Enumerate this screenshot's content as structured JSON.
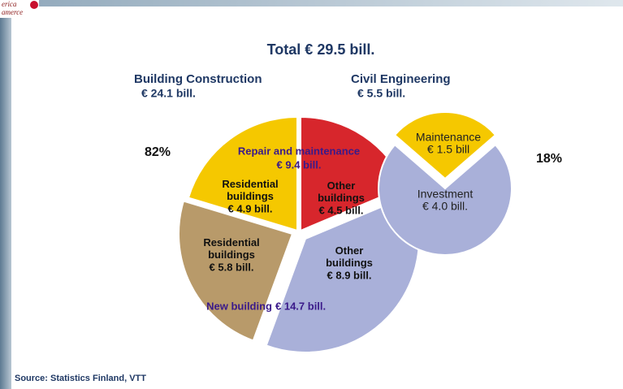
{
  "title": "Total € 29.5 bill.",
  "source": "Source: Statistics Finland, VTT",
  "logo": [
    "erica",
    "amerce"
  ],
  "chart_data": [
    {
      "type": "pie",
      "name": "Building Construction",
      "subtitle": "€ 24.1 bill.",
      "share_label": "82%",
      "categories": [
        "Other buildings",
        "Other buildings",
        "Residential buildings",
        "Residential buildings"
      ],
      "values": [
        4.5,
        8.9,
        5.8,
        4.9
      ],
      "value_labels": [
        "€ 4.5 bill.",
        "€ 8.9 bill.",
        "€ 5.8 bill.",
        "€ 4.9 bill."
      ],
      "colors": [
        "#d7262c",
        "#a9b0d9",
        "#b89a6a",
        "#f5c800"
      ],
      "groups": [
        {
          "name": "Repair and maintenance",
          "value_label": "€ 9.4 bill."
        },
        {
          "name": "New building",
          "value_label": "€ 14.7 bill."
        }
      ]
    },
    {
      "type": "pie",
      "name": "Civil Engineering",
      "subtitle": "€ 5.5 bill.",
      "share_label": "18%",
      "categories": [
        "Maintenance",
        "Investment"
      ],
      "values": [
        1.5,
        4.0
      ],
      "value_labels": [
        "€ 1.5 bill",
        "€ 4.0 bill."
      ],
      "colors": [
        "#f5c800",
        "#a9b0d9"
      ]
    }
  ]
}
